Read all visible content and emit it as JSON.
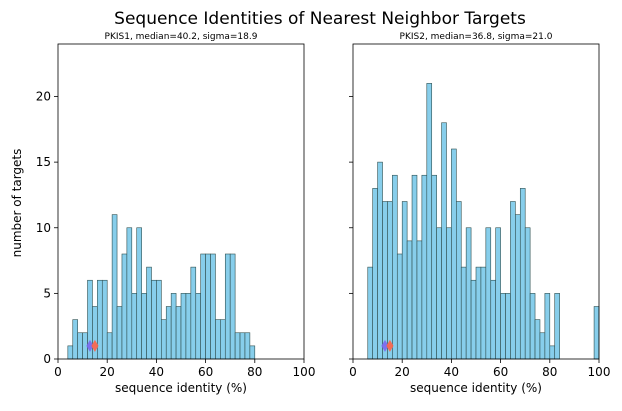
{
  "figure": {
    "title": "Sequence Identities of Nearest Neighbor Targets",
    "ylabel": "number of targets",
    "xlabel": "sequence identity (%)"
  },
  "chart_data": [
    {
      "type": "bar",
      "title": "PKIS1, median=40.2, sigma=18.9",
      "xlabel": "sequence identity (%)",
      "ylabel": "number of targets",
      "xlim": [
        0,
        100
      ],
      "ylim": [
        0,
        24
      ],
      "xticks": [
        0,
        20,
        40,
        60,
        80,
        100
      ],
      "yticks": [
        0,
        5,
        10,
        15,
        20
      ],
      "bin_width": 2,
      "bins_start": [
        4,
        6,
        8,
        10,
        12,
        14,
        16,
        18,
        20,
        22,
        24,
        26,
        28,
        30,
        32,
        34,
        36,
        38,
        40,
        42,
        44,
        46,
        48,
        50,
        52,
        54,
        56,
        58,
        60,
        62,
        64,
        66,
        68,
        70,
        72,
        74,
        76,
        78
      ],
      "values": [
        1,
        3,
        2,
        2,
        6,
        4,
        6,
        6,
        2,
        11,
        4,
        8,
        10,
        5,
        10,
        5,
        7,
        6,
        6,
        3,
        4,
        5,
        4,
        5,
        5,
        7,
        5,
        8,
        8,
        8,
        3,
        3,
        8,
        8,
        2,
        2,
        2,
        1
      ],
      "markers": [
        {
          "x": 13,
          "y": 1,
          "color": "#7b68ee",
          "shape": "diamond"
        },
        {
          "x": 15,
          "y": 1,
          "color": "#ff6347",
          "shape": "diamond"
        }
      ],
      "bar_color": "#87ceeb",
      "edge_color": "#2f4f4f"
    },
    {
      "type": "bar",
      "title": "PKIS2, median=36.8, sigma=21.0",
      "xlabel": "sequence identity (%)",
      "ylabel": "",
      "xlim": [
        0,
        100
      ],
      "ylim": [
        0,
        24
      ],
      "xticks": [
        0,
        20,
        40,
        60,
        80,
        100
      ],
      "yticks": [
        0,
        5,
        10,
        15,
        20
      ],
      "bin_width": 2,
      "bins_start": [
        6,
        8,
        10,
        12,
        14,
        16,
        18,
        20,
        22,
        24,
        26,
        28,
        30,
        32,
        34,
        36,
        38,
        40,
        42,
        44,
        46,
        48,
        50,
        52,
        54,
        56,
        58,
        60,
        62,
        64,
        66,
        68,
        70,
        72,
        74,
        76,
        78,
        80,
        82,
        98
      ],
      "values": [
        7,
        13,
        15,
        12,
        12,
        14,
        8,
        12,
        9,
        14,
        9,
        14,
        21,
        14,
        10,
        18,
        10,
        16,
        12,
        7,
        10,
        6,
        7,
        7,
        10,
        6,
        10,
        5,
        5,
        12,
        11,
        13,
        10,
        5,
        3,
        2,
        5,
        1,
        5,
        4
      ],
      "markers": [
        {
          "x": 13,
          "y": 1,
          "color": "#7b68ee",
          "shape": "diamond"
        },
        {
          "x": 15,
          "y": 1,
          "color": "#ff6347",
          "shape": "diamond"
        }
      ],
      "bar_color": "#87ceeb",
      "edge_color": "#2f4f4f"
    }
  ]
}
